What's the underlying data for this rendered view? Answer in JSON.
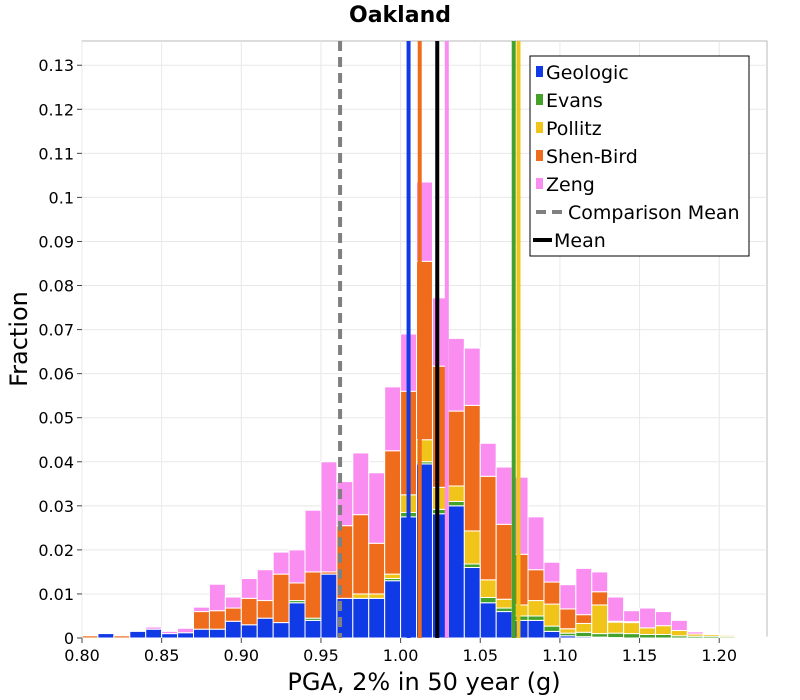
{
  "chart_data": {
    "type": "bar",
    "stacked": true,
    "title": "Oakland",
    "xlabel": "PGA, 2% in 50 year (g)",
    "ylabel": "Fraction",
    "xlim": [
      0.8,
      1.23
    ],
    "ylim": [
      0,
      0.1355
    ],
    "grid": true,
    "legend_position": "top-right",
    "xticks": [
      "0.80",
      "0.85",
      "0.90",
      "0.95",
      "1.00",
      "1.05",
      "1.10",
      "1.15",
      "1.20"
    ],
    "yticks": [
      "0",
      "0.01",
      "0.02",
      "0.03",
      "0.04",
      "0.05",
      "0.06",
      "0.07",
      "0.08",
      "0.09",
      "0.1",
      "0.11",
      "0.12",
      "0.13"
    ],
    "bin_width": 0.01,
    "x": [
      0.8,
      0.81,
      0.82,
      0.83,
      0.84,
      0.85,
      0.86,
      0.87,
      0.88,
      0.89,
      0.9,
      0.91,
      0.92,
      0.93,
      0.94,
      0.95,
      0.96,
      0.97,
      0.98,
      0.99,
      1.0,
      1.01,
      1.02,
      1.03,
      1.04,
      1.05,
      1.06,
      1.07,
      1.08,
      1.09,
      1.1,
      1.11,
      1.12,
      1.13,
      1.14,
      1.15,
      1.16,
      1.17,
      1.18,
      1.19,
      1.2,
      1.21,
      1.22
    ],
    "series": [
      {
        "name": "Geologic",
        "color": "#0f3ae6",
        "values": [
          0,
          0.001,
          0,
          0.0015,
          0.002,
          0.001,
          0.0012,
          0.002,
          0.002,
          0.0038,
          0.003,
          0.0045,
          0.0035,
          0.008,
          0.004,
          0.0145,
          0.009,
          0.009,
          0.009,
          0.013,
          0.0275,
          0.0395,
          0.0282,
          0.03,
          0.016,
          0.008,
          0.006,
          0.004,
          0.004,
          0.0015,
          0.0005,
          0.0003,
          0.0002,
          0.0001,
          0,
          0,
          0,
          0,
          0,
          0,
          0,
          0,
          0
        ]
      },
      {
        "name": "Evans",
        "color": "#44a22a",
        "values": [
          0,
          0,
          0,
          0,
          0,
          0,
          0,
          0,
          0,
          0,
          0,
          0,
          0,
          0.0005,
          0.0005,
          0,
          0,
          0,
          0,
          0.0005,
          0.001,
          0.0005,
          0.001,
          0.001,
          0.0008,
          0.0012,
          0.0008,
          0.001,
          0.001,
          0.0012,
          0.0006,
          0.001,
          0.0008,
          0.001,
          0.001,
          0.0008,
          0.0008,
          0.0005,
          0.0004,
          0.0004,
          0.0003,
          0,
          0
        ]
      },
      {
        "name": "Pollitz",
        "color": "#f0c419",
        "values": [
          0,
          0,
          0,
          0,
          0,
          0,
          0,
          0,
          0,
          0,
          0,
          0,
          0,
          0,
          0,
          0,
          0,
          0.001,
          0.001,
          0.001,
          0.004,
          0.005,
          0.005,
          0.0035,
          0.0075,
          0.004,
          0.002,
          0.0025,
          0.0035,
          0.005,
          0.001,
          0.002,
          0.0065,
          0.0025,
          0.0025,
          0.0015,
          0.002,
          0.0012,
          0.0005,
          0.0004,
          0.0003,
          0.0002,
          0.0002
        ]
      },
      {
        "name": "Shen-Bird",
        "color": "#ef6c1d",
        "values": [
          0.0005,
          0,
          0.0005,
          0,
          0,
          0,
          0,
          0.004,
          0.0042,
          0.003,
          0.006,
          0.004,
          0.011,
          0.004,
          0.0105,
          0.0005,
          0.0165,
          0.018,
          0.0115,
          0.028,
          0.0235,
          0.0405,
          0.0275,
          0.017,
          0.0285,
          0.0235,
          0.017,
          0.0115,
          0.007,
          0.005,
          0.0045,
          0.002,
          0.003,
          0.0002,
          0.0002,
          0,
          0,
          0,
          0,
          0,
          0,
          0,
          0
        ]
      },
      {
        "name": "Zeng",
        "color": "#f98ef0",
        "values": [
          0,
          0,
          0,
          0,
          0.0005,
          0.0005,
          0.001,
          0.001,
          0.006,
          0.0025,
          0.0045,
          0.007,
          0.005,
          0.0075,
          0.014,
          0.025,
          0.01,
          0.014,
          0.016,
          0.0145,
          0.013,
          0.018,
          0.0155,
          0.0165,
          0.013,
          0.0075,
          0.013,
          0.0175,
          0.012,
          0.0045,
          0.0055,
          0.0105,
          0.0045,
          0.0055,
          0.0025,
          0.0045,
          0.0032,
          0.0023,
          0.0005,
          0.0002,
          0,
          0,
          0
        ]
      }
    ],
    "reference_lines": [
      {
        "name": "Geologic mean",
        "x": 1.005,
        "color": "#0f3ae6",
        "style": "solid"
      },
      {
        "name": "Shen-Bird mean",
        "x": 1.012,
        "color": "#ef6c1d",
        "style": "solid"
      },
      {
        "name": "Zeng mean",
        "x": 1.029,
        "color": "#f98ef0",
        "style": "solid"
      },
      {
        "name": "Evans mean",
        "x": 1.071,
        "color": "#44a22a",
        "style": "solid"
      },
      {
        "name": "Pollitz mean",
        "x": 1.074,
        "color": "#f0c419",
        "style": "solid"
      },
      {
        "name": "Comparison Mean",
        "x": 0.962,
        "color": "#808080",
        "style": "dashed"
      },
      {
        "name": "Mean",
        "x": 1.023,
        "color": "#000000",
        "style": "solid"
      }
    ],
    "legend": [
      {
        "label": "Geologic",
        "color": "#0f3ae6",
        "kind": "patch"
      },
      {
        "label": "Evans",
        "color": "#44a22a",
        "kind": "patch"
      },
      {
        "label": "Pollitz",
        "color": "#f0c419",
        "kind": "patch"
      },
      {
        "label": "Shen-Bird",
        "color": "#ef6c1d",
        "kind": "patch"
      },
      {
        "label": "Zeng",
        "color": "#f98ef0",
        "kind": "patch"
      },
      {
        "label": "Comparison Mean",
        "color": "#808080",
        "kind": "dashed-line"
      },
      {
        "label": "Mean",
        "color": "#000000",
        "kind": "line"
      }
    ]
  }
}
